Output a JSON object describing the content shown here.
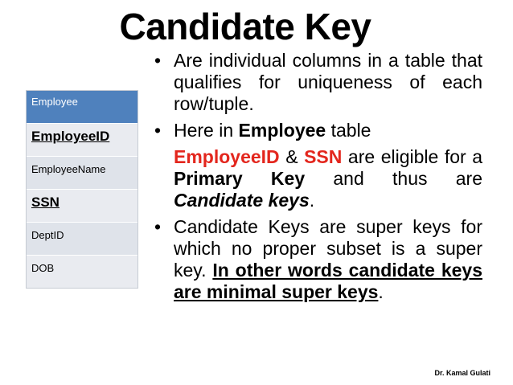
{
  "title": "Candidate Key",
  "table": {
    "header": "Employee",
    "rows": [
      {
        "label": "EmployeeID"
      },
      {
        "label": "EmployeeName"
      },
      {
        "label": "SSN"
      },
      {
        "label": "DeptID"
      },
      {
        "label": "DOB"
      }
    ]
  },
  "bullets": {
    "b1": "Are individual columns in a table that qualifies for uniqueness of each row/tuple.",
    "b2_pre": "Here in ",
    "b2_bold": "Employee",
    "b2_post": " table",
    "b2_sub": {
      "key1": "EmployeeID",
      "amp": " & ",
      "key2": "SSN",
      "mid": " are eligible for a ",
      "pk": "Primary Key",
      "mid2": " and thus are ",
      "ck": "Candidate keys",
      "end": "."
    },
    "b3_pre": "Candidate Keys are super keys for which no proper subset is a super key. ",
    "b3_underline": "In other words candidate keys are minimal super keys",
    "b3_end": "."
  },
  "bullet_symbol": "•",
  "credit": "Dr. Kamal Gulati"
}
